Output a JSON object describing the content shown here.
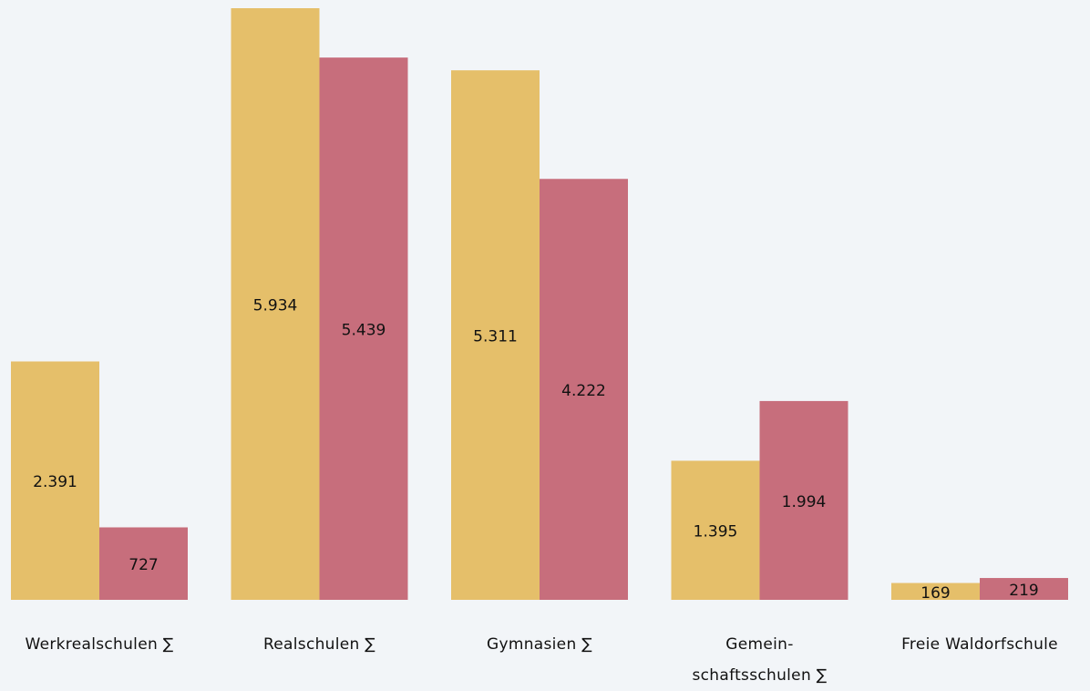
{
  "chart_data": {
    "type": "bar",
    "categories": [
      "Werkrealschulen ∑",
      "Realschulen ∑",
      "Gymnasien ∑",
      "Gemein-\nschaftsschulen ∑",
      "Freie Waldorfschule"
    ],
    "series": [
      {
        "color": "#e5bf6a",
        "values": [
          2391,
          5934,
          5311,
          1395,
          169
        ],
        "value_labels": [
          "2.391",
          "5.934",
          "5.311",
          "1.395",
          "169"
        ]
      },
      {
        "color": "#c76e7c",
        "values": [
          727,
          5439,
          4222,
          1994,
          219
        ],
        "value_labels": [
          "727",
          "5.439",
          "4.222",
          "1.994",
          "219"
        ]
      }
    ]
  }
}
